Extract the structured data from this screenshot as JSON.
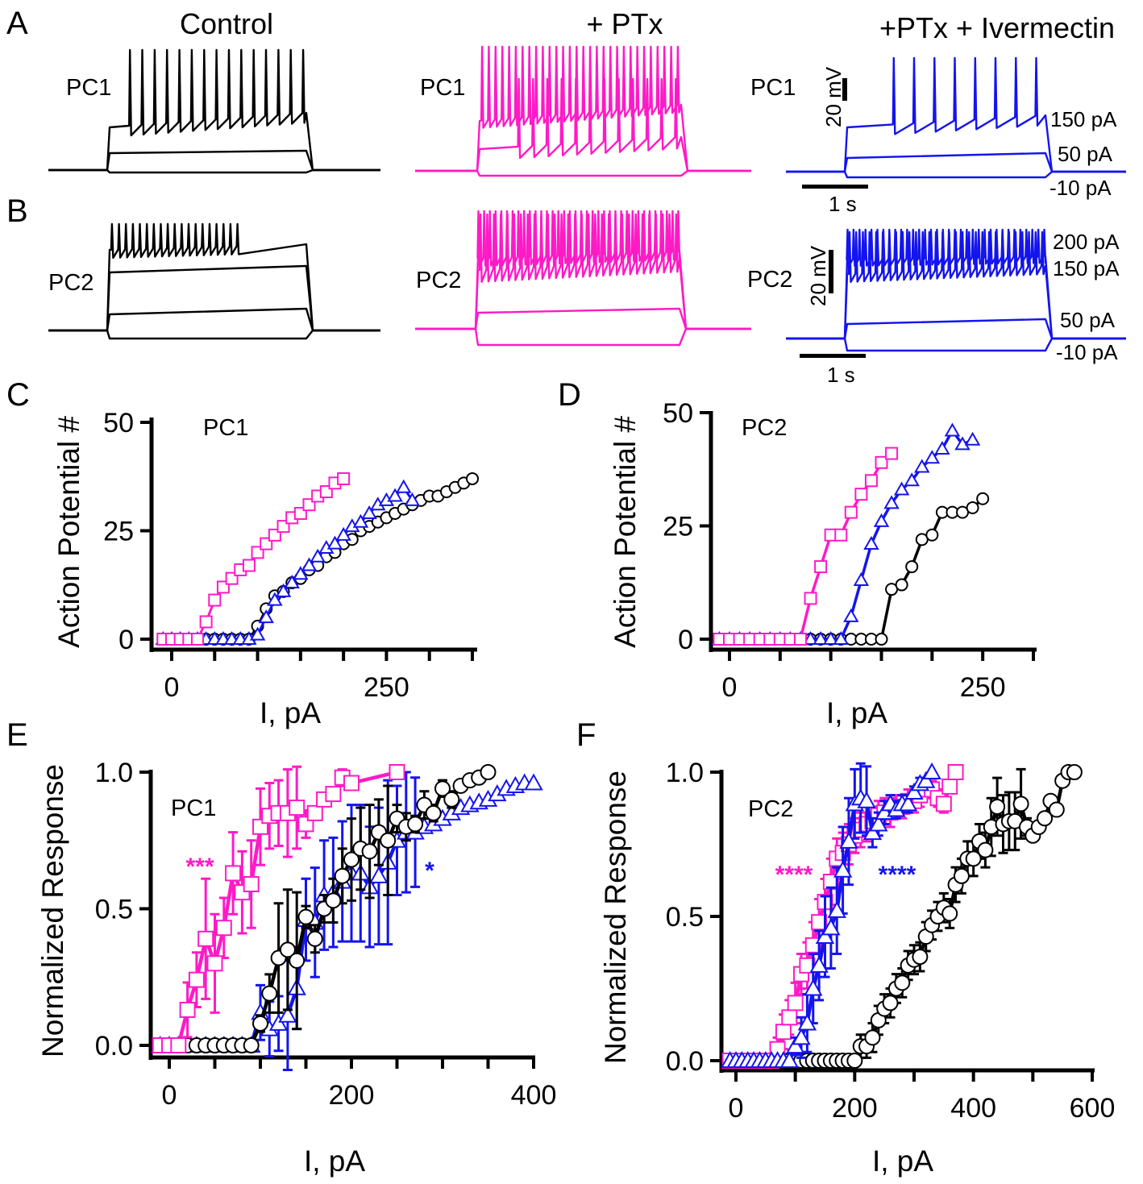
{
  "colors": {
    "control": "#000000",
    "ptx": "#ff1ac6",
    "ivermectin": "#1414ee"
  },
  "column_titles": [
    "Control",
    "+ PTx",
    "+PTx + Ivermectin"
  ],
  "row_A": {
    "letter": "A",
    "cells": [
      {
        "label": "PC1",
        "condition": "control",
        "spike_counts": [
          0,
          0,
          15
        ]
      },
      {
        "label": "PC1",
        "condition": "ptx",
        "spike_counts": [
          0,
          12,
          30
        ]
      },
      {
        "label": "PC1",
        "condition": "ivermectin",
        "spike_counts": [
          0,
          0,
          8
        ]
      }
    ],
    "current_labels": [
      "150 pA",
      "50 pA",
      "-10 pA"
    ],
    "scale_v": "20 mV",
    "scale_t": "1 s"
  },
  "row_B": {
    "letter": "B",
    "cells": [
      {
        "label": "PC2",
        "condition": "control",
        "spike_counts": [
          0,
          0,
          0,
          19
        ]
      },
      {
        "label": "PC2",
        "condition": "ptx",
        "spike_counts": [
          0,
          0,
          30,
          36
        ]
      },
      {
        "label": "PC2",
        "condition": "ivermectin",
        "spike_counts": [
          0,
          0,
          30,
          34
        ]
      }
    ],
    "current_labels": [
      "200 pA",
      "150 pA",
      "50 pA",
      "-10 pA"
    ],
    "scale_v": "20 mV",
    "scale_t": "1 s"
  },
  "chart_data": [
    {
      "panel": "C",
      "type": "line",
      "title": "PC1",
      "xlabel": "I, pA",
      "ylabel": "Action Potential #",
      "xlim": [
        0,
        350
      ],
      "ylim": [
        0,
        50
      ],
      "xticks": [
        0,
        50,
        100,
        150,
        200,
        250,
        300,
        350
      ],
      "xtick_labels": [
        {
          "v": 0,
          "t": "0"
        },
        {
          "v": 250,
          "t": "250"
        }
      ],
      "yticks": [
        {
          "v": 0,
          "t": "0"
        },
        {
          "v": 25,
          "t": "25"
        },
        {
          "v": 50,
          "t": "50"
        }
      ],
      "annotations": [],
      "series": [
        {
          "name": "Control",
          "key": "control",
          "marker": "circle",
          "x_start": -10,
          "x_step": 10,
          "values": [
            0,
            0,
            0,
            0,
            0,
            0,
            0,
            0,
            0,
            0,
            0,
            3,
            7,
            10,
            11,
            13,
            14,
            16,
            17,
            19,
            20,
            22,
            23,
            25,
            26,
            27,
            28,
            29,
            30,
            31,
            32,
            33,
            33,
            34,
            35,
            36,
            37
          ]
        },
        {
          "name": "+PTx + Ivermectin",
          "key": "ivermectin",
          "marker": "triangle",
          "x_start": -10,
          "x_step": 10,
          "values": [
            0,
            0,
            0,
            0,
            0,
            0,
            0,
            0,
            0,
            0,
            0,
            1,
            5,
            9,
            11,
            13,
            15,
            17,
            19,
            21,
            22,
            24,
            26,
            27,
            29,
            31,
            32,
            33,
            35,
            32
          ]
        },
        {
          "name": "+ PTx",
          "key": "ptx",
          "marker": "square",
          "x_start": -10,
          "x_step": 10,
          "values": [
            0,
            0,
            0,
            0,
            0,
            4,
            9,
            12,
            14,
            16,
            17,
            20,
            22,
            24,
            26,
            28,
            29,
            31,
            33,
            34,
            36,
            37
          ]
        }
      ]
    },
    {
      "panel": "D",
      "type": "line",
      "title": "PC2",
      "xlabel": "I, pA",
      "ylabel": "Action Potential #",
      "xlim": [
        0,
        300
      ],
      "ylim": [
        0,
        50
      ],
      "xticks": [
        0,
        50,
        100,
        150,
        200,
        250,
        300
      ],
      "xtick_labels": [
        {
          "v": 0,
          "t": "0"
        },
        {
          "v": 250,
          "t": "250"
        }
      ],
      "yticks": [
        {
          "v": 0,
          "t": "0"
        },
        {
          "v": 25,
          "t": "25"
        },
        {
          "v": 50,
          "t": "50"
        }
      ],
      "annotations": [],
      "series": [
        {
          "name": "Control",
          "key": "control",
          "marker": "circle",
          "x_start": -10,
          "x_step": 10,
          "values": [
            0,
            0,
            0,
            0,
            0,
            0,
            0,
            0,
            0,
            0,
            0,
            0,
            0,
            0,
            0,
            0,
            0,
            11,
            12,
            16,
            22,
            23,
            28,
            28,
            28,
            29,
            31
          ]
        },
        {
          "name": "+PTx + Ivermectin",
          "key": "ivermectin",
          "marker": "triangle",
          "x_start": -10,
          "x_step": 10,
          "values": [
            0,
            0,
            0,
            0,
            0,
            0,
            0,
            0,
            0,
            0,
            0,
            0,
            0,
            5,
            13,
            21,
            26,
            30,
            33,
            35,
            38,
            40,
            42,
            46,
            43,
            44
          ]
        },
        {
          "name": "+ PTx",
          "key": "ptx",
          "marker": "square",
          "x_start": -10,
          "x_step": 10,
          "values": [
            0,
            0,
            0,
            0,
            0,
            0,
            0,
            0,
            0,
            9,
            16,
            23,
            23,
            28,
            32,
            35,
            39,
            41
          ]
        }
      ]
    },
    {
      "panel": "E",
      "type": "line",
      "title": "PC1",
      "xlabel": "I, pA",
      "ylabel": "Normalized Response",
      "xlim": [
        0,
        400
      ],
      "ylim": [
        0,
        1
      ],
      "xticks": [
        0,
        50,
        100,
        150,
        200,
        250,
        300,
        350,
        400
      ],
      "xtick_labels": [
        {
          "v": 0,
          "t": "0"
        },
        {
          "v": 200,
          "t": "200"
        },
        {
          "v": 400,
          "t": "400"
        }
      ],
      "yticks": [
        {
          "v": 0,
          "t": "0.0"
        },
        {
          "v": 0.5,
          "t": "0.5"
        },
        {
          "v": 1,
          "t": "1.0"
        }
      ],
      "annotations": [
        {
          "text": "***",
          "key": "ptx"
        },
        {
          "text": "*",
          "key": "ivermectin"
        }
      ],
      "series": [
        {
          "name": "+PTx + Ivermectin",
          "key": "ivermectin",
          "marker": "triangle",
          "x_start": -10,
          "x_step": 10,
          "values": [
            0,
            0,
            0,
            0,
            0,
            0,
            0,
            0,
            0,
            0,
            0,
            0.12,
            0.06,
            0.08,
            0.11,
            0.21,
            0.46,
            0.45,
            0.55,
            0.56,
            0.6,
            0.63,
            0.63,
            0.58,
            0.62,
            0.67,
            0.75,
            0.78,
            0.78,
            0.8,
            0.81,
            0.83,
            0.85,
            0.87,
            0.88,
            0.89,
            0.9,
            0.92,
            0.94,
            0.95,
            0.96,
            0.96
          ],
          "err": [
            0,
            0,
            0,
            0,
            0,
            0,
            0,
            0,
            0,
            0,
            0,
            0.1,
            0.1,
            0.1,
            0.2,
            0.15,
            0.15,
            0.2,
            0.2,
            0.2,
            0.22,
            0.25,
            0.25,
            0.22,
            0.25,
            0.3,
            0.2,
            0.22,
            0.2,
            0,
            0,
            0,
            0,
            0,
            0,
            0,
            0,
            0,
            0,
            0,
            0,
            0
          ]
        },
        {
          "name": "Control",
          "key": "control",
          "marker": "circle",
          "x_start": -10,
          "x_step": 10,
          "values": [
            0,
            0,
            0,
            0,
            0,
            0,
            0,
            0,
            0,
            0,
            0,
            0.08,
            0.19,
            0.32,
            0.35,
            0.31,
            0.47,
            0.39,
            0.5,
            0.53,
            0.62,
            0.68,
            0.72,
            0.71,
            0.78,
            0.75,
            0.83,
            0.8,
            0.81,
            0.88,
            0.85,
            0.94,
            0.9,
            0.95,
            0.97,
            0.98,
            1.0
          ],
          "err": [
            0,
            0,
            0,
            0,
            0,
            0,
            0,
            0,
            0,
            0,
            0,
            0.03,
            0.07,
            0.2,
            0.22,
            0.25,
            0.04,
            0.05,
            0.05,
            0.08,
            0.1,
            0.15,
            0.15,
            0.17,
            0.12,
            0.2,
            0.05,
            0.05,
            0.03,
            0.05,
            0.03,
            0.03,
            0.03,
            0,
            0,
            0,
            0
          ]
        },
        {
          "name": "+ PTx",
          "key": "ptx",
          "marker": "square",
          "x": [
            -10,
            0,
            10,
            20,
            30,
            40,
            50,
            60,
            70,
            80,
            90,
            100,
            110,
            120,
            130,
            140,
            150,
            160,
            170,
            180,
            190,
            200,
            250
          ],
          "values": [
            0,
            0,
            0,
            0.13,
            0.24,
            0.39,
            0.3,
            0.43,
            0.63,
            0.56,
            0.59,
            0.8,
            0.84,
            0.85,
            0.85,
            0.87,
            0.81,
            0.85,
            0.9,
            0.92,
            0.98,
            0.96,
            1.0
          ],
          "err": [
            0,
            0,
            0,
            0.1,
            0.1,
            0.22,
            0.18,
            0.11,
            0.15,
            0.15,
            0.16,
            0.14,
            0.12,
            0.12,
            0.16,
            0.15,
            0.05,
            0,
            0,
            0,
            0.03,
            0.02,
            0
          ]
        }
      ]
    },
    {
      "panel": "F",
      "type": "line",
      "title": "PC2",
      "xlabel": "I, pA",
      "ylabel": "Normalized Response",
      "xlim": [
        0,
        600
      ],
      "ylim": [
        0,
        1
      ],
      "xticks": [
        0,
        100,
        200,
        300,
        400,
        500,
        600
      ],
      "xtick_labels": [
        {
          "v": 0,
          "t": "0"
        },
        {
          "v": 200,
          "t": "200"
        },
        {
          "v": 400,
          "t": "400"
        },
        {
          "v": 600,
          "t": "600"
        }
      ],
      "yticks": [
        {
          "v": 0,
          "t": "0.0"
        },
        {
          "v": 0.5,
          "t": "0.5"
        },
        {
          "v": 1,
          "t": "1.0"
        }
      ],
      "annotations": [
        {
          "text": "****",
          "key": "ptx"
        },
        {
          "text": "****",
          "key": "ivermectin"
        }
      ],
      "series": [
        {
          "name": "Control",
          "key": "control",
          "marker": "circle",
          "x_start": -10,
          "x_step": 10,
          "values": [
            0,
            0,
            0,
            0,
            0,
            0,
            0,
            0,
            0,
            0,
            0,
            0,
            0,
            0,
            0,
            0,
            0,
            0,
            0,
            0,
            0,
            0,
            0.05,
            0.05,
            0.08,
            0.14,
            0.18,
            0.2,
            0.25,
            0.27,
            0.33,
            0.35,
            0.36,
            0.43,
            0.47,
            0.5,
            0.53,
            0.51,
            0.61,
            0.64,
            0.7,
            0.7,
            0.76,
            0.73,
            0.81,
            0.88,
            0.82,
            0.83,
            0.83,
            0.89,
            0.81,
            0.78,
            0.81,
            0.84,
            0.9,
            0.87,
            0.97,
            1.0,
            1.0
          ],
          "err": [
            0,
            0,
            0,
            0,
            0,
            0,
            0,
            0,
            0,
            0,
            0,
            0,
            0,
            0,
            0,
            0,
            0,
            0,
            0,
            0,
            0,
            0,
            0.04,
            0.04,
            0.05,
            0.05,
            0.05,
            0.05,
            0.05,
            0.05,
            0.05,
            0.05,
            0.05,
            0.05,
            0.05,
            0.05,
            0.05,
            0.05,
            0.06,
            0.06,
            0.06,
            0.06,
            0.06,
            0.06,
            0.1,
            0.1,
            0.1,
            0.1,
            0.1,
            0.12,
            0.03,
            0,
            0,
            0,
            0,
            0,
            0,
            0,
            0
          ]
        },
        {
          "name": "+ PTx",
          "key": "ptx",
          "marker": "square",
          "x_start": -10,
          "x_step": 10,
          "values": [
            0,
            0,
            0,
            0,
            0,
            0,
            0,
            0,
            0.04,
            0.1,
            0.15,
            0.2,
            0.3,
            0.33,
            0.4,
            0.48,
            0.55,
            0.62,
            0.7,
            0.72,
            0.75,
            0.78,
            0.8,
            0.82,
            0.83,
            0.85,
            0.86,
            0.86,
            0.88,
            0.88,
            0.9,
            0.9,
            0.92,
            0.94,
            0.94,
            0.91,
            0.89,
            0.95,
            1.0
          ],
          "err": [
            0,
            0,
            0,
            0,
            0,
            0,
            0,
            0,
            0.04,
            0.06,
            0.06,
            0.07,
            0.07,
            0.08,
            0.08,
            0.08,
            0.08,
            0.08,
            0.07,
            0.07,
            0.07,
            0.06,
            0.06,
            0.06,
            0.05,
            0.05,
            0.05,
            0.05,
            0.04,
            0.04,
            0.04,
            0.04,
            0.04,
            0.03,
            0.03,
            0.03,
            0.03,
            0.02,
            0
          ]
        },
        {
          "name": "+PTx + Ivermectin",
          "key": "ivermectin",
          "marker": "triangle",
          "x_start": -10,
          "x_step": 10,
          "values": [
            0,
            0,
            0,
            0,
            0,
            0,
            0,
            0,
            0,
            0,
            0,
            0.05,
            0.08,
            0.13,
            0.25,
            0.33,
            0.43,
            0.46,
            0.52,
            0.66,
            0.76,
            0.89,
            0.91,
            0.9,
            0.79,
            0.82,
            0.86,
            0.89,
            0.87,
            0.89,
            0.89,
            0.93,
            0.96,
            0.97,
            1.0
          ],
          "err": [
            0,
            0,
            0,
            0,
            0,
            0,
            0,
            0,
            0,
            0,
            0,
            0.03,
            0.07,
            0.1,
            0.12,
            0.12,
            0.14,
            0.14,
            0.15,
            0.15,
            0.15,
            0.12,
            0.12,
            0.12,
            0.05,
            0.04,
            0.04,
            0.03,
            0.03,
            0.03,
            0.03,
            0.02,
            0.02,
            0,
            0
          ]
        }
      ]
    }
  ]
}
